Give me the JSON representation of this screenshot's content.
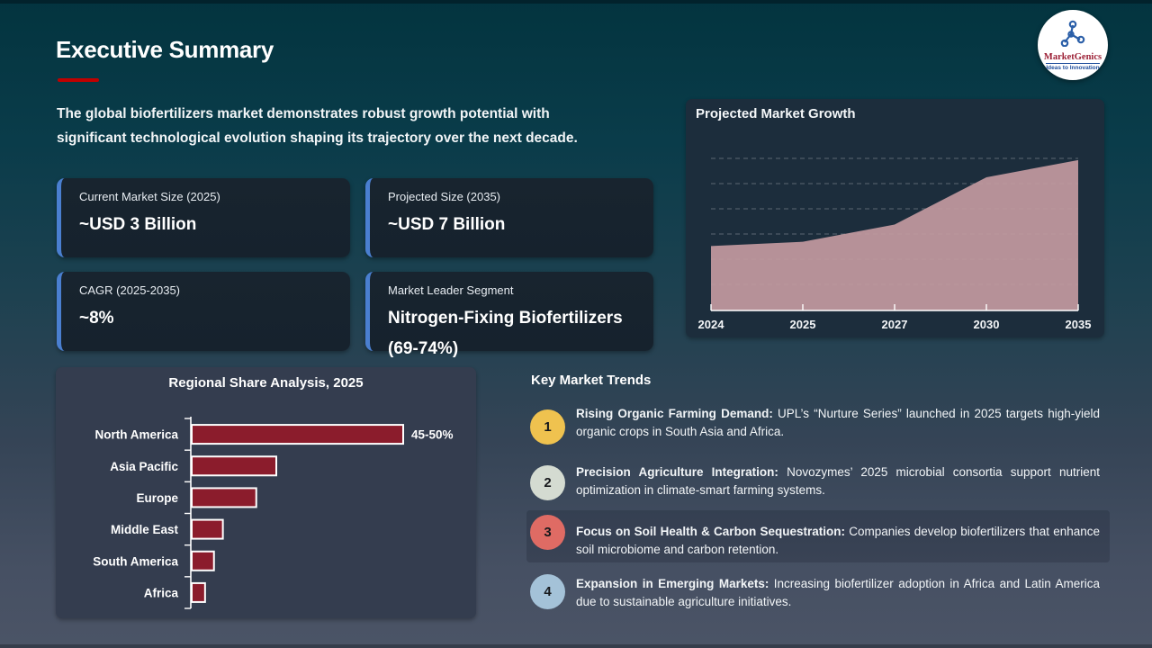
{
  "slide": {
    "title": "Executive Summary",
    "intro": "The global biofertilizers market demonstrates robust growth potential with significant technological evolution shaping its trajectory over the next decade."
  },
  "logo": {
    "name": "MarketGenics",
    "tagline": "Ideas to Innovation",
    "icon": "network-nodes-icon",
    "accent_red": "#9c2036",
    "accent_blue": "#1f4e9c"
  },
  "stat_cards": [
    {
      "label": "Current Market Size (2025)",
      "value": "~USD 3 Billion"
    },
    {
      "label": "Projected Size (2035)",
      "value": "~USD 7 Billion"
    },
    {
      "label": "CAGR (2025-2035)",
      "value": "~8%"
    },
    {
      "label": "Market Leader Segment",
      "value": "Nitrogen-Fixing Biofertilizers (69-74%)"
    }
  ],
  "chart_data": [
    {
      "type": "area",
      "title": "Projected Market Growth",
      "x": [
        "2024",
        "2025",
        "2027",
        "2030",
        "2035"
      ],
      "values": [
        3.0,
        3.2,
        4.0,
        6.2,
        7.0
      ],
      "ylim": [
        0,
        8
      ],
      "grid": "dashed-horizontal",
      "legend_position": "none",
      "fill_color": "#c39aa1",
      "xlabel": "",
      "ylabel": ""
    },
    {
      "type": "bar",
      "orientation": "horizontal",
      "title": "Regional Share Analysis, 2025",
      "categories": [
        "North America",
        "Asia Pacific",
        "Europe",
        "Middle East",
        "South America",
        "Africa"
      ],
      "values": [
        47.5,
        19,
        14.5,
        7,
        5,
        3
      ],
      "value_labels": [
        "45-50%",
        "",
        "",
        "",
        "",
        ""
      ],
      "xlim": [
        0,
        50
      ],
      "grid": "off",
      "legend_position": "none",
      "bar_color": "#8b1c2c",
      "xlabel": "",
      "ylabel": ""
    }
  ],
  "trends": {
    "title": "Key Market Trends",
    "items": [
      {
        "num": "1",
        "color": "#efc24f",
        "lead": "Rising Organic Farming Demand:",
        "rest": " UPL’s “Nurture Series” launched in 2025 targets high-yield organic crops in South Asia and Africa."
      },
      {
        "num": "2",
        "color": "#d4dbd1",
        "lead": "Precision Agriculture Integration:",
        "rest": " Novozymes’ 2025 microbial consortia support nutrient optimization in climate-smart farming systems."
      },
      {
        "num": "3",
        "color": "#df6b64",
        "lead": "Focus on Soil Health & Carbon Sequestration:",
        "rest": " Companies develop biofertilizers that enhance soil microbiome and carbon retention."
      },
      {
        "num": "4",
        "color": "#a4c2d8",
        "lead": "Expansion in Emerging Markets:",
        "rest": " Increasing biofertilizer adoption in Africa and Latin America due to sustainable agriculture initiatives."
      }
    ]
  }
}
